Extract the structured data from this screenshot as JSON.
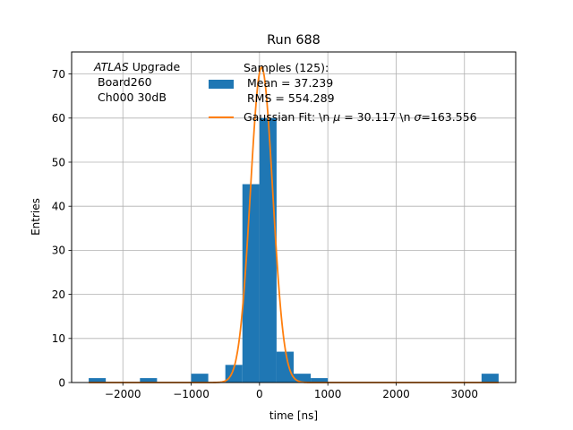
{
  "chart_data": {
    "type": "bar",
    "title": "Run 688",
    "xlabel": "time [ns]",
    "ylabel": "Entries",
    "xlim": [
      -2750,
      3750
    ],
    "ylim": [
      0,
      75
    ],
    "grid": true,
    "xticks": [
      -2000,
      -1000,
      0,
      1000,
      2000,
      3000
    ],
    "xtick_labels": [
      "−2000",
      "−1000",
      "0",
      "1000",
      "2000",
      "3000"
    ],
    "yticks": [
      0,
      10,
      20,
      30,
      40,
      50,
      60,
      70
    ],
    "yticks_labels": [
      "0",
      "10",
      "20",
      "30",
      "40",
      "50",
      "60",
      "70"
    ],
    "annotation": {
      "italic": "ATLAS",
      "rest": " Upgrade",
      "line2": "Board260",
      "line3": "Ch000 30dB"
    },
    "legend_position": "top-right",
    "histogram": {
      "name_lines": [
        "Samples (125):",
        "Mean = 37.239",
        "RMS = 554.289"
      ],
      "color": "#1f77b4",
      "bins": [
        {
          "x0": -2500,
          "x1": -2250,
          "count": 1
        },
        {
          "x0": -1750,
          "x1": -1500,
          "count": 1
        },
        {
          "x0": -1000,
          "x1": -750,
          "count": 2
        },
        {
          "x0": -500,
          "x1": -250,
          "count": 4
        },
        {
          "x0": -250,
          "x1": 0,
          "count": 45
        },
        {
          "x0": 0,
          "x1": 250,
          "count": 60
        },
        {
          "x0": 250,
          "x1": 500,
          "count": 7
        },
        {
          "x0": 500,
          "x1": 750,
          "count": 2
        },
        {
          "x0": 750,
          "x1": 1000,
          "count": 1
        },
        {
          "x0": 3250,
          "x1": 3500,
          "count": 2
        }
      ]
    },
    "fit": {
      "name_prefix": "Gaussian Fit: \\n ",
      "mu_symbol": "μ",
      "mu_text": " = 30.117 \\n ",
      "sigma_symbol": "σ",
      "sigma_text": "=163.556",
      "mu": 30.117,
      "sigma": 163.556,
      "amplitude": 71.5,
      "color": "#ff7f0e"
    }
  }
}
